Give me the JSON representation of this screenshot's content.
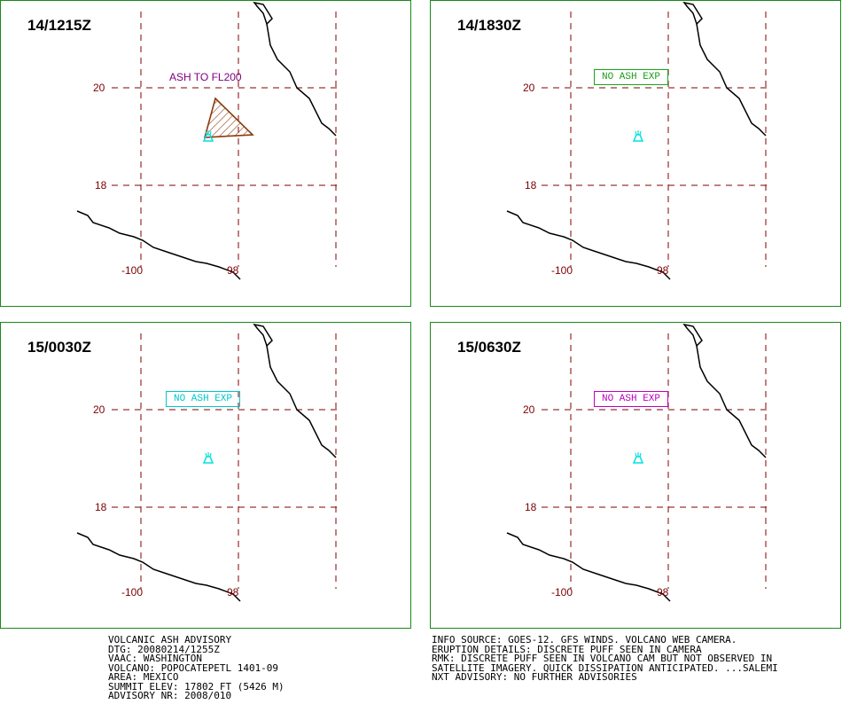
{
  "panels": [
    {
      "time": "14/1215Z",
      "lat_labels": [
        "20",
        "18"
      ],
      "lon_labels": [
        "-100",
        "98"
      ],
      "note": "ASH TO FL200",
      "note_color": "#800080",
      "note_boxed": false,
      "has_ash_polygon": true,
      "volcano_color": "#00e0e0"
    },
    {
      "time": "14/1830Z",
      "lat_labels": [
        "20",
        "18"
      ],
      "lon_labels": [
        "-100",
        "98"
      ],
      "note": "NO ASH EXP",
      "note_color": "#1aa01a",
      "note_boxed": true,
      "has_ash_polygon": false,
      "volcano_color": "#00e0e0"
    },
    {
      "time": "15/0030Z",
      "lat_labels": [
        "20",
        "18"
      ],
      "lon_labels": [
        "-100",
        "98"
      ],
      "note": "NO ASH EXP",
      "note_color": "#00c8c8",
      "note_boxed": true,
      "has_ash_polygon": false,
      "volcano_color": "#00e0e0"
    },
    {
      "time": "15/0630Z",
      "lat_labels": [
        "20",
        "18"
      ],
      "lon_labels": [
        "-100",
        "98"
      ],
      "note": "NO ASH EXP",
      "note_color": "#c000c0",
      "note_boxed": true,
      "has_ash_polygon": false,
      "volcano_color": "#00e0e0"
    }
  ],
  "colors": {
    "border": "#1a8a1a",
    "grid": "#800000",
    "coast": "#000000",
    "ash_outline": "#8b3a0a"
  },
  "advisory": {
    "line1": "VOLCANIC ASH ADVISORY",
    "line2": "DTG: 20080214/1255Z",
    "line3": "VAAC: WASHINGTON",
    "line4": "VOLCANO: POPOCATEPETL 1401-09",
    "line5": "AREA: MEXICO",
    "line6": "SUMMIT ELEV: 17802 FT (5426 M)",
    "line7": "ADVISORY NR: 2008/010"
  },
  "details": {
    "line1": "INFO SOURCE: GOES-12. GFS WINDS. VOLCANO WEB CAMERA.",
    "line2": "ERUPTION DETAILS: DISCRETE PUFF SEEN IN CAMERA",
    "line3": "RMK: DISCRETE PUFF SEEN IN VOLCANO CAM BUT NOT OBSERVED IN",
    "line4": "SATELLITE IMAGERY. QUICK DISSIPATION ANTICIPATED. ...SALEMI",
    "line5": "NXT ADVISORY: NO FURTHER ADVISORIES"
  }
}
